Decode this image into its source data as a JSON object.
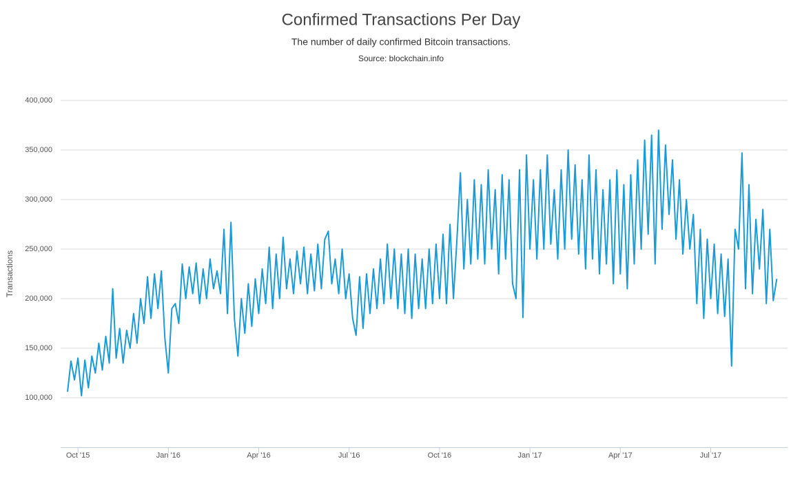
{
  "chart_data": {
    "type": "line",
    "title": "Confirmed Transactions Per Day",
    "subtitle": "The number of daily confirmed Bitcoin transactions.",
    "source": "Source: blockchain.info",
    "y_label": "Transactions",
    "color": "#1a9bd7",
    "grid": true,
    "ylim": [
      50000,
      400000
    ],
    "yticks": [
      {
        "value": 100000,
        "label": "100,000"
      },
      {
        "value": 150000,
        "label": "150,000"
      },
      {
        "value": 200000,
        "label": "200,000"
      },
      {
        "value": 250000,
        "label": "250,000"
      },
      {
        "value": 300000,
        "label": "300,000"
      },
      {
        "value": 350000,
        "label": "350,000"
      },
      {
        "value": 400000,
        "label": "400,000"
      }
    ],
    "categories": [
      null,
      null,
      null,
      "Oct '15",
      null,
      null,
      null,
      null,
      null,
      null,
      null,
      null,
      null,
      null,
      null,
      null,
      null,
      null,
      null,
      null,
      null,
      null,
      null,
      null,
      null,
      null,
      null,
      null,
      null,
      "Jan '16",
      null,
      null,
      null,
      null,
      null,
      null,
      null,
      null,
      null,
      null,
      null,
      null,
      null,
      null,
      null,
      null,
      null,
      null,
      null,
      null,
      null,
      null,
      null,
      null,
      null,
      "Apr '16",
      null,
      null,
      null,
      null,
      null,
      null,
      null,
      null,
      null,
      null,
      null,
      null,
      null,
      null,
      null,
      null,
      null,
      null,
      null,
      null,
      null,
      null,
      null,
      null,
      null,
      "Jul '16",
      null,
      null,
      null,
      null,
      null,
      null,
      null,
      null,
      null,
      null,
      null,
      null,
      null,
      null,
      null,
      null,
      null,
      null,
      null,
      null,
      null,
      null,
      null,
      null,
      null,
      "Oct '16",
      null,
      null,
      null,
      null,
      null,
      null,
      null,
      null,
      null,
      null,
      null,
      null,
      null,
      null,
      null,
      null,
      null,
      null,
      null,
      null,
      null,
      null,
      null,
      null,
      null,
      "Jan '17",
      null,
      null,
      null,
      null,
      null,
      null,
      null,
      null,
      null,
      null,
      null,
      null,
      null,
      null,
      null,
      null,
      null,
      null,
      null,
      null,
      null,
      null,
      null,
      null,
      null,
      "Apr '17",
      null,
      null,
      null,
      null,
      null,
      null,
      null,
      null,
      null,
      null,
      null,
      null,
      null,
      null,
      null,
      null,
      null,
      null,
      null,
      null,
      null,
      null,
      null,
      null,
      null,
      "Jul '17",
      null,
      null,
      null,
      null,
      null,
      null,
      null,
      null,
      null,
      null,
      null,
      null,
      null,
      null,
      null,
      null,
      null,
      null,
      null
    ],
    "values": [
      106000,
      137000,
      118000,
      140000,
      102000,
      138000,
      110000,
      142000,
      125000,
      155000,
      128000,
      162000,
      135000,
      210000,
      140000,
      170000,
      135000,
      168000,
      150000,
      185000,
      155000,
      200000,
      175000,
      222000,
      180000,
      225000,
      190000,
      228000,
      160000,
      125000,
      190000,
      195000,
      175000,
      235000,
      200000,
      232000,
      205000,
      236000,
      195000,
      230000,
      200000,
      240000,
      210000,
      228000,
      205000,
      270000,
      185000,
      277000,
      180000,
      142000,
      200000,
      165000,
      215000,
      172000,
      220000,
      185000,
      230000,
      195000,
      252000,
      190000,
      245000,
      200000,
      262000,
      210000,
      240000,
      205000,
      248000,
      215000,
      252000,
      205000,
      245000,
      208000,
      255000,
      210000,
      260000,
      268000,
      215000,
      240000,
      205000,
      250000,
      200000,
      225000,
      180000,
      163000,
      222000,
      170000,
      225000,
      185000,
      230000,
      190000,
      240000,
      195000,
      255000,
      200000,
      250000,
      190000,
      245000,
      185000,
      250000,
      180000,
      245000,
      190000,
      240000,
      190000,
      250000,
      195000,
      255000,
      200000,
      265000,
      195000,
      275000,
      200000,
      260000,
      327000,
      230000,
      300000,
      235000,
      320000,
      240000,
      315000,
      235000,
      330000,
      250000,
      310000,
      225000,
      325000,
      240000,
      320000,
      215000,
      200000,
      330000,
      181000,
      345000,
      250000,
      320000,
      240000,
      330000,
      250000,
      345000,
      255000,
      310000,
      240000,
      330000,
      250000,
      350000,
      260000,
      335000,
      245000,
      320000,
      230000,
      345000,
      240000,
      330000,
      225000,
      310000,
      235000,
      320000,
      215000,
      330000,
      225000,
      315000,
      210000,
      325000,
      235000,
      340000,
      250000,
      360000,
      265000,
      365000,
      235000,
      370000,
      270000,
      355000,
      285000,
      340000,
      260000,
      320000,
      245000,
      300000,
      250000,
      285000,
      195000,
      270000,
      180000,
      260000,
      200000,
      255000,
      185000,
      245000,
      182000,
      240000,
      132000,
      270000,
      250000,
      347000,
      210000,
      315000,
      205000,
      280000,
      230000,
      290000,
      195000,
      270000,
      198000,
      220000
    ]
  }
}
